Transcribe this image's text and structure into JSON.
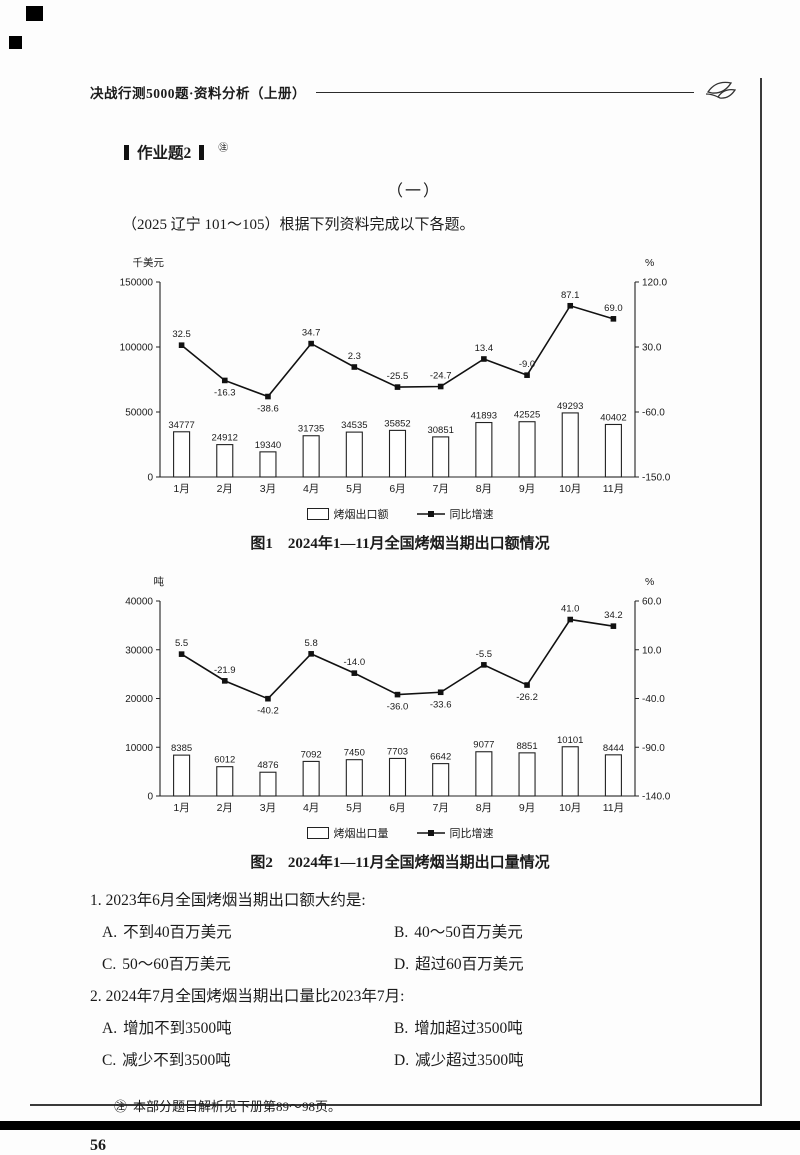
{
  "page": {
    "header_title": "决战行测5000题·资料分析（上册）",
    "page_number": "56"
  },
  "assignment": {
    "title": "作业题2",
    "ref_mark": "㊟",
    "section": "（一）",
    "intro": "（2025 辽宁 101～105）根据下列资料完成以下各题。"
  },
  "chart_data": [
    {
      "type": "bar+line",
      "title": "图1　2024年1—11月全国烤烟当期出口额情况",
      "categories": [
        "1月",
        "2月",
        "3月",
        "4月",
        "5月",
        "6月",
        "7月",
        "8月",
        "9月",
        "10月",
        "11月"
      ],
      "left_axis": {
        "unit": "千美元",
        "min": 0,
        "max": 150000,
        "ticks": [
          0,
          50000,
          100000,
          150000
        ]
      },
      "right_axis": {
        "unit": "%",
        "min": -150,
        "max": 120,
        "ticks": [
          120,
          30,
          -60,
          -150
        ]
      },
      "grid": false,
      "legend_position": "bottom",
      "series": [
        {
          "name": "烤烟出口额",
          "type": "bar",
          "values": [
            34777,
            24912,
            19340,
            31735,
            34535,
            35852,
            30851,
            41893,
            42525,
            49293,
            40402
          ]
        },
        {
          "name": "同比增速",
          "type": "line",
          "values": [
            32.5,
            -16.3,
            -38.6,
            34.7,
            2.3,
            -25.5,
            -24.7,
            13.4,
            -9.0,
            87.1,
            69.0
          ],
          "label_pos": [
            "a",
            "b",
            "b",
            "a",
            "a",
            "a",
            "a",
            "a",
            "a",
            "a",
            "a"
          ]
        }
      ]
    },
    {
      "type": "bar+line",
      "title": "图2　2024年1—11月全国烤烟当期出口量情况",
      "categories": [
        "1月",
        "2月",
        "3月",
        "4月",
        "5月",
        "6月",
        "7月",
        "8月",
        "9月",
        "10月",
        "11月"
      ],
      "left_axis": {
        "unit": "吨",
        "min": 0,
        "max": 40000,
        "ticks": [
          0,
          10000,
          20000,
          30000,
          40000
        ]
      },
      "right_axis": {
        "unit": "%",
        "min": -140,
        "max": 60,
        "ticks": [
          60,
          10,
          -40,
          -90,
          -140
        ]
      },
      "grid": false,
      "legend_position": "bottom",
      "series": [
        {
          "name": "烤烟出口量",
          "type": "bar",
          "values": [
            8385,
            6012,
            4876,
            7092,
            7450,
            7703,
            6642,
            9077,
            8851,
            10101,
            8444
          ]
        },
        {
          "name": "同比增速",
          "type": "line",
          "values": [
            5.5,
            -21.9,
            -40.2,
            5.8,
            -14.0,
            -36.0,
            -33.6,
            -5.5,
            -26.2,
            41.0,
            34.2
          ],
          "label_pos": [
            "a",
            "a",
            "b",
            "a",
            "a",
            "b",
            "b",
            "a",
            "b",
            "a",
            "a"
          ]
        }
      ]
    }
  ],
  "questions": [
    {
      "number": "1.",
      "text": "2023年6月全国烤烟当期出口额大约是:",
      "options": [
        {
          "label": "A.",
          "text": "不到40百万美元"
        },
        {
          "label": "B.",
          "text": "40～50百万美元"
        },
        {
          "label": "C.",
          "text": "50～60百万美元"
        },
        {
          "label": "D.",
          "text": "超过60百万美元"
        }
      ]
    },
    {
      "number": "2.",
      "text": "2024年7月全国烤烟当期出口量比2023年7月:",
      "options": [
        {
          "label": "A.",
          "text": "增加不到3500吨"
        },
        {
          "label": "B.",
          "text": "增加超过3500吨"
        },
        {
          "label": "C.",
          "text": "减少不到3500吨"
        },
        {
          "label": "D.",
          "text": "减少超过3500吨"
        }
      ]
    }
  ],
  "footnote": {
    "marker": "㊟",
    "text": "本部分题目解析见下册第89～98页。"
  }
}
